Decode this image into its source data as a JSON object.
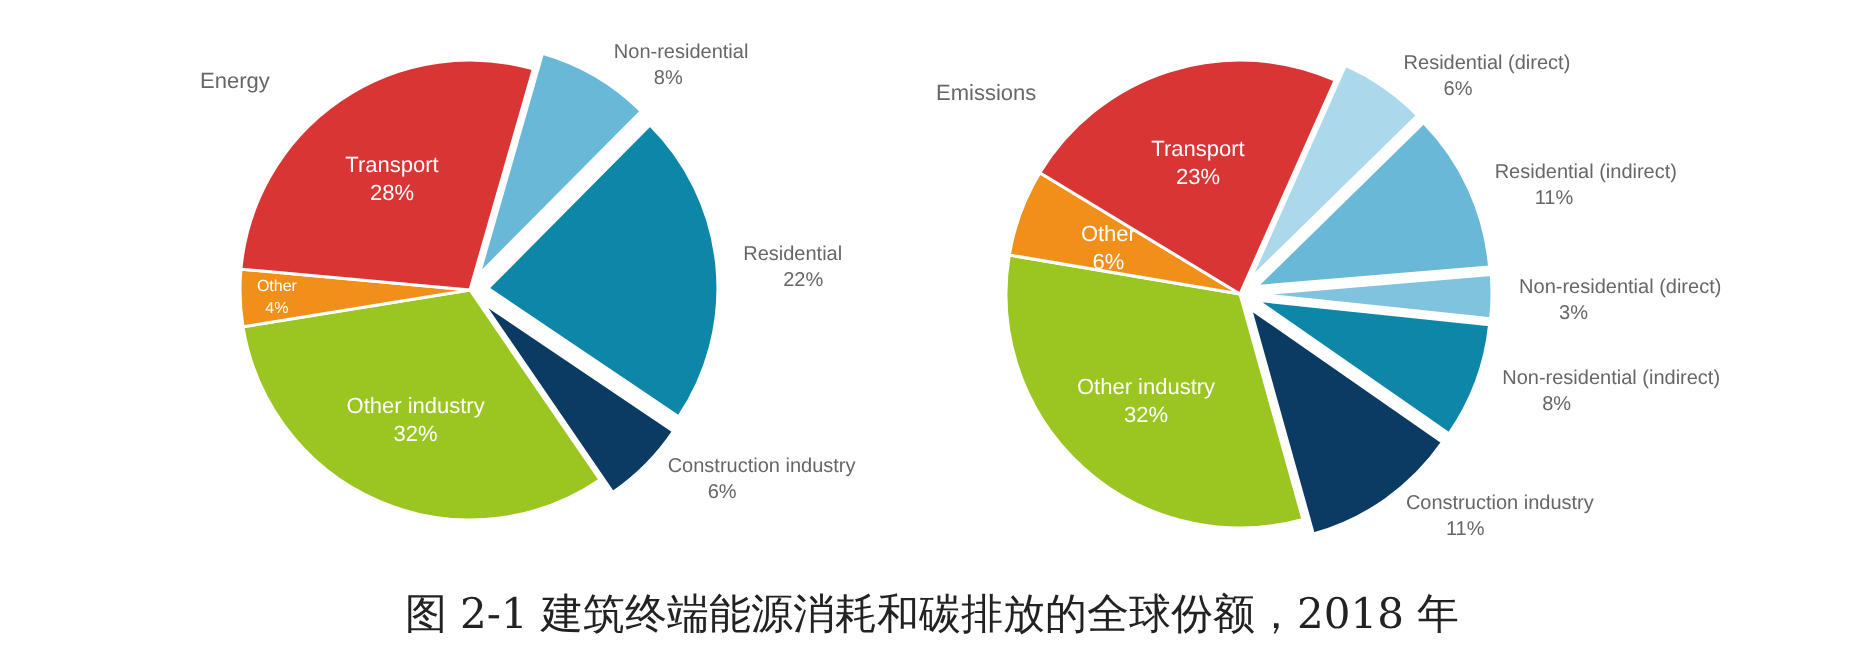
{
  "chart_data": [
    {
      "type": "pie",
      "title": "Energy",
      "categories": [
        "Non-residential",
        "Residential",
        "Construction industry",
        "Other industry",
        "Other",
        "Transport"
      ],
      "values": [
        8,
        22,
        6,
        32,
        4,
        28
      ],
      "value_labels": [
        "8%",
        "22%",
        "6%",
        "32%",
        "4%",
        "28%"
      ],
      "colors": [
        "#6ab8d8",
        "#0e86a8",
        "#0b3a63",
        "#9bc521",
        "#f0901a",
        "#d93535"
      ]
    },
    {
      "type": "pie",
      "title": "Emissions",
      "categories": [
        "Residential (direct)",
        "Residential (indirect)",
        "Non-residential (direct)",
        "Non-residential (indirect)",
        "Construction industry",
        "Other industry",
        "Other",
        "Transport"
      ],
      "values": [
        6,
        11,
        3,
        8,
        11,
        32,
        6,
        23
      ],
      "value_labels": [
        "6%",
        "11%",
        "3%",
        "8%",
        "11%",
        "32%",
        "6%",
        "23%"
      ],
      "colors": [
        "#acd8ec",
        "#6ab8d8",
        "#7fc3df",
        "#0e86a8",
        "#0b3a63",
        "#9bc521",
        "#f0901a",
        "#d93535"
      ]
    },
    {
      "type": "other",
      "title": "图 2-1 建筑终端能源消耗和碳排放的全球份额，2018 年"
    }
  ]
}
